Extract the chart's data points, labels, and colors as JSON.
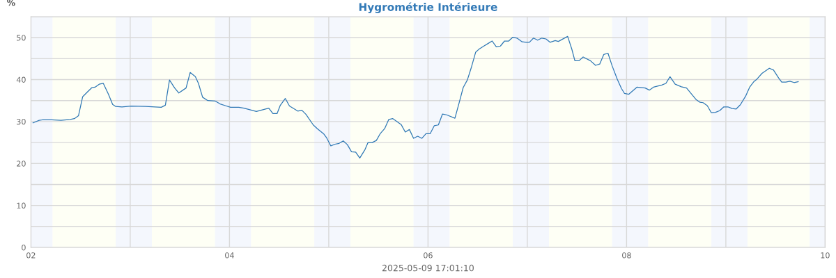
{
  "chart_data": {
    "type": "line",
    "title": "Hygrométrie Intérieure",
    "xlabel": "2025-05-09 17:01:10",
    "ylabel": "%",
    "xlim": [
      "2025-05-02",
      "2025-05-10"
    ],
    "xticks": [
      {
        "value": "2025-05-02",
        "label": "02"
      },
      {
        "value": "2025-05-03",
        "label": null
      },
      {
        "value": "2025-05-04",
        "label": "04"
      },
      {
        "value": "2025-05-05",
        "label": null
      },
      {
        "value": "2025-05-06",
        "label": "06"
      },
      {
        "value": "2025-05-07",
        "label": null
      },
      {
        "value": "2025-05-08",
        "label": "08"
      },
      {
        "value": "2025-05-09",
        "label": null
      },
      {
        "value": "2025-05-10",
        "label": "10"
      }
    ],
    "ylim": [
      0,
      55
    ],
    "yticks": [
      0,
      {
        "value": 5,
        "label": null
      },
      10,
      {
        "value": 15,
        "label": null
      },
      20,
      {
        "value": 25,
        "label": null
      },
      30,
      {
        "value": 35,
        "label": null
      },
      40,
      {
        "value": 45,
        "label": null
      },
      50,
      {
        "value": 55,
        "label": null
      }
    ],
    "grid": true,
    "marker": "none",
    "line_style": "solid",
    "bands": [
      {
        "axis": "x",
        "from": "2025-05-02T00:00",
        "to": "2025-05-02T05:15",
        "color": "#f4f7fd"
      },
      {
        "axis": "x",
        "from": "2025-05-02T05:15",
        "to": "2025-05-02T20:30",
        "color": "#fefff5"
      },
      {
        "axis": "x",
        "from": "2025-05-02T20:30",
        "to": "2025-05-03T05:15",
        "color": "#f4f7fd"
      },
      {
        "axis": "x",
        "from": "2025-05-03T05:15",
        "to": "2025-05-03T20:30",
        "color": "#fefff5"
      },
      {
        "axis": "x",
        "from": "2025-05-03T20:30",
        "to": "2025-05-04T05:15",
        "color": "#f4f7fd"
      },
      {
        "axis": "x",
        "from": "2025-05-04T05:15",
        "to": "2025-05-04T20:30",
        "color": "#fefff5"
      },
      {
        "axis": "x",
        "from": "2025-05-04T20:30",
        "to": "2025-05-05T05:15",
        "color": "#f4f7fd"
      },
      {
        "axis": "x",
        "from": "2025-05-05T05:15",
        "to": "2025-05-05T20:30",
        "color": "#fefff5"
      },
      {
        "axis": "x",
        "from": "2025-05-05T20:30",
        "to": "2025-05-06T05:15",
        "color": "#f4f7fd"
      },
      {
        "axis": "x",
        "from": "2025-05-06T05:15",
        "to": "2025-05-06T20:30",
        "color": "#fefff5"
      },
      {
        "axis": "x",
        "from": "2025-05-06T20:30",
        "to": "2025-05-07T05:15",
        "color": "#f4f7fd"
      },
      {
        "axis": "x",
        "from": "2025-05-07T05:15",
        "to": "2025-05-07T20:30",
        "color": "#fefff5"
      },
      {
        "axis": "x",
        "from": "2025-05-07T20:30",
        "to": "2025-05-08T05:15",
        "color": "#f4f7fd"
      },
      {
        "axis": "x",
        "from": "2025-05-08T05:15",
        "to": "2025-05-08T20:30",
        "color": "#fefff5"
      },
      {
        "axis": "x",
        "from": "2025-05-08T20:30",
        "to": "2025-05-09T05:15",
        "color": "#f4f7fd"
      },
      {
        "axis": "x",
        "from": "2025-05-09T05:15",
        "to": "2025-05-09T20:15",
        "color": "#fefff5"
      },
      {
        "axis": "x",
        "from": "2025-05-09T20:15",
        "to": "2025-05-10T00:00",
        "color": "#f4f7fd"
      }
    ],
    "series": [
      {
        "color": "#2f78b5",
        "x": [
          "2025-05-02T00:30",
          "2025-05-02T02:00",
          "2025-05-02T02:45",
          "2025-05-02T05:00",
          "2025-05-02T07:15",
          "2025-05-02T09:30",
          "2025-05-02T10:30",
          "2025-05-02T11:30",
          "2025-05-02T12:30",
          "2025-05-02T13:30",
          "2025-05-02T14:45",
          "2025-05-02T15:30",
          "2025-05-02T16:30",
          "2025-05-02T17:30",
          "2025-05-02T18:45",
          "2025-05-02T19:45",
          "2025-05-02T20:30",
          "2025-05-02T22:00",
          "2025-05-03T00:15",
          "2025-05-03T03:45",
          "2025-05-03T06:00",
          "2025-05-03T07:30",
          "2025-05-03T08:30",
          "2025-05-03T09:30",
          "2025-05-03T10:45",
          "2025-05-03T11:45",
          "2025-05-03T13:30",
          "2025-05-03T14:30",
          "2025-05-03T15:45",
          "2025-05-03T16:30",
          "2025-05-03T17:30",
          "2025-05-03T18:45",
          "2025-05-03T20:30",
          "2025-05-03T21:45",
          "2025-05-03T23:00",
          "2025-05-04T00:15",
          "2025-05-04T02:15",
          "2025-05-04T03:30",
          "2025-05-04T06:30",
          "2025-05-04T09:30",
          "2025-05-04T10:30",
          "2025-05-04T11:30",
          "2025-05-04T12:15",
          "2025-05-04T13:30",
          "2025-05-04T14:30",
          "2025-05-04T16:30",
          "2025-05-04T17:30",
          "2025-05-04T18:30",
          "2025-05-04T20:15",
          "2025-05-04T21:15",
          "2025-05-04T22:45",
          "2025-05-04T23:30",
          "2025-05-05T00:30",
          "2025-05-05T01:30",
          "2025-05-05T02:30",
          "2025-05-05T03:30",
          "2025-05-05T04:30",
          "2025-05-05T05:30",
          "2025-05-05T06:30",
          "2025-05-05T07:30",
          "2025-05-05T08:45",
          "2025-05-05T09:30",
          "2025-05-05T10:30",
          "2025-05-05T11:30",
          "2025-05-05T12:30",
          "2025-05-05T13:30",
          "2025-05-05T14:30",
          "2025-05-05T15:30",
          "2025-05-05T16:30",
          "2025-05-05T17:30",
          "2025-05-05T18:30",
          "2025-05-05T19:30",
          "2025-05-05T20:30",
          "2025-05-05T21:30",
          "2025-05-05T22:30",
          "2025-05-05T23:30",
          "2025-05-06T00:30",
          "2025-05-06T01:30",
          "2025-05-06T02:30",
          "2025-05-06T03:30",
          "2025-05-06T04:30",
          "2025-05-06T06:30",
          "2025-05-06T07:30",
          "2025-05-06T08:30",
          "2025-05-06T09:30",
          "2025-05-06T10:30",
          "2025-05-06T11:30",
          "2025-05-06T12:15",
          "2025-05-06T13:30",
          "2025-05-06T14:30",
          "2025-05-06T15:30",
          "2025-05-06T16:30",
          "2025-05-06T17:30",
          "2025-05-06T18:30",
          "2025-05-06T19:30",
          "2025-05-06T20:30",
          "2025-05-06T21:30",
          "2025-05-06T22:45",
          "2025-05-06T23:45",
          "2025-05-07T00:30",
          "2025-05-07T01:30",
          "2025-05-07T02:30",
          "2025-05-07T03:30",
          "2025-05-07T04:30",
          "2025-05-07T05:30",
          "2025-05-07T06:45",
          "2025-05-07T07:30",
          "2025-05-07T09:45",
          "2025-05-07T10:45",
          "2025-05-07T11:30",
          "2025-05-07T12:30",
          "2025-05-07T13:30",
          "2025-05-07T15:15",
          "2025-05-07T16:30",
          "2025-05-07T17:30",
          "2025-05-07T18:30",
          "2025-05-07T19:30",
          "2025-05-07T20:30",
          "2025-05-07T21:45",
          "2025-05-07T22:45",
          "2025-05-07T23:30",
          "2025-05-08T00:30",
          "2025-05-08T02:30",
          "2025-05-08T04:30",
          "2025-05-08T05:30",
          "2025-05-08T06:30",
          "2025-05-08T08:30",
          "2025-05-08T09:30",
          "2025-05-08T10:30",
          "2025-05-08T11:45",
          "2025-05-08T13:15",
          "2025-05-08T14:30",
          "2025-05-08T16:45",
          "2025-05-08T17:45",
          "2025-05-08T18:30",
          "2025-05-08T19:30",
          "2025-05-08T20:30",
          "2025-05-08T21:30",
          "2025-05-08T22:30",
          "2025-05-08T23:30",
          "2025-05-09T00:30",
          "2025-05-09T01:30",
          "2025-05-09T02:30",
          "2025-05-09T03:30",
          "2025-05-09T04:45",
          "2025-05-09T05:45",
          "2025-05-09T06:45",
          "2025-05-09T07:30",
          "2025-05-09T08:45",
          "2025-05-09T10:30",
          "2025-05-09T11:30",
          "2025-05-09T12:45",
          "2025-05-09T13:30",
          "2025-05-09T14:30",
          "2025-05-09T15:30",
          "2025-05-09T16:30",
          "2025-05-09T17:30"
        ],
        "values": [
          29.7,
          30.3,
          30.4,
          30.4,
          30.3,
          30.5,
          30.7,
          31.4,
          35.9,
          36.9,
          38.1,
          38.2,
          38.9,
          39.1,
          36.5,
          34.1,
          33.6,
          33.5,
          33.7,
          33.6,
          33.5,
          33.4,
          33.9,
          39.9,
          38.0,
          36.8,
          38.0,
          41.7,
          40.7,
          39.1,
          35.8,
          35.0,
          34.9,
          34.2,
          33.8,
          33.4,
          33.4,
          33.2,
          32.4,
          33.2,
          31.9,
          31.9,
          33.8,
          35.5,
          33.7,
          32.5,
          32.7,
          31.7,
          29.2,
          28.3,
          27.1,
          26.1,
          24.2,
          24.6,
          24.8,
          25.4,
          24.5,
          22.8,
          22.7,
          21.3,
          23.3,
          25.0,
          25.0,
          25.5,
          27.2,
          28.3,
          30.5,
          30.7,
          30.0,
          29.3,
          27.5,
          28.1,
          26.0,
          26.5,
          26.0,
          27.1,
          27.1,
          29.0,
          29.2,
          31.8,
          31.6,
          30.8,
          34.4,
          38.1,
          39.9,
          43.0,
          46.5,
          47.2,
          48.0,
          48.6,
          49.2,
          47.8,
          48.0,
          49.2,
          49.2,
          50.1,
          49.9,
          49.0,
          48.9,
          48.9,
          49.9,
          49.4,
          49.9,
          49.7,
          48.9,
          49.3,
          49.1,
          50.3,
          47.3,
          44.5,
          44.5,
          45.4,
          44.5,
          43.4,
          43.7,
          46.0,
          46.3,
          43.3,
          40.1,
          37.9,
          36.7,
          36.5,
          38.2,
          38.0,
          37.5,
          38.2,
          38.7,
          39.1,
          40.7,
          38.9,
          38.3,
          38.0,
          35.3,
          34.6,
          34.5,
          33.8,
          32.1,
          32.2,
          32.6,
          33.5,
          33.5,
          33.1,
          33.0,
          34.0,
          36.0,
          38.2,
          39.5,
          40.1,
          41.5,
          42.7,
          42.3,
          40.4,
          39.4,
          39.4,
          39.6,
          39.3,
          39.5
        ]
      }
    ]
  }
}
